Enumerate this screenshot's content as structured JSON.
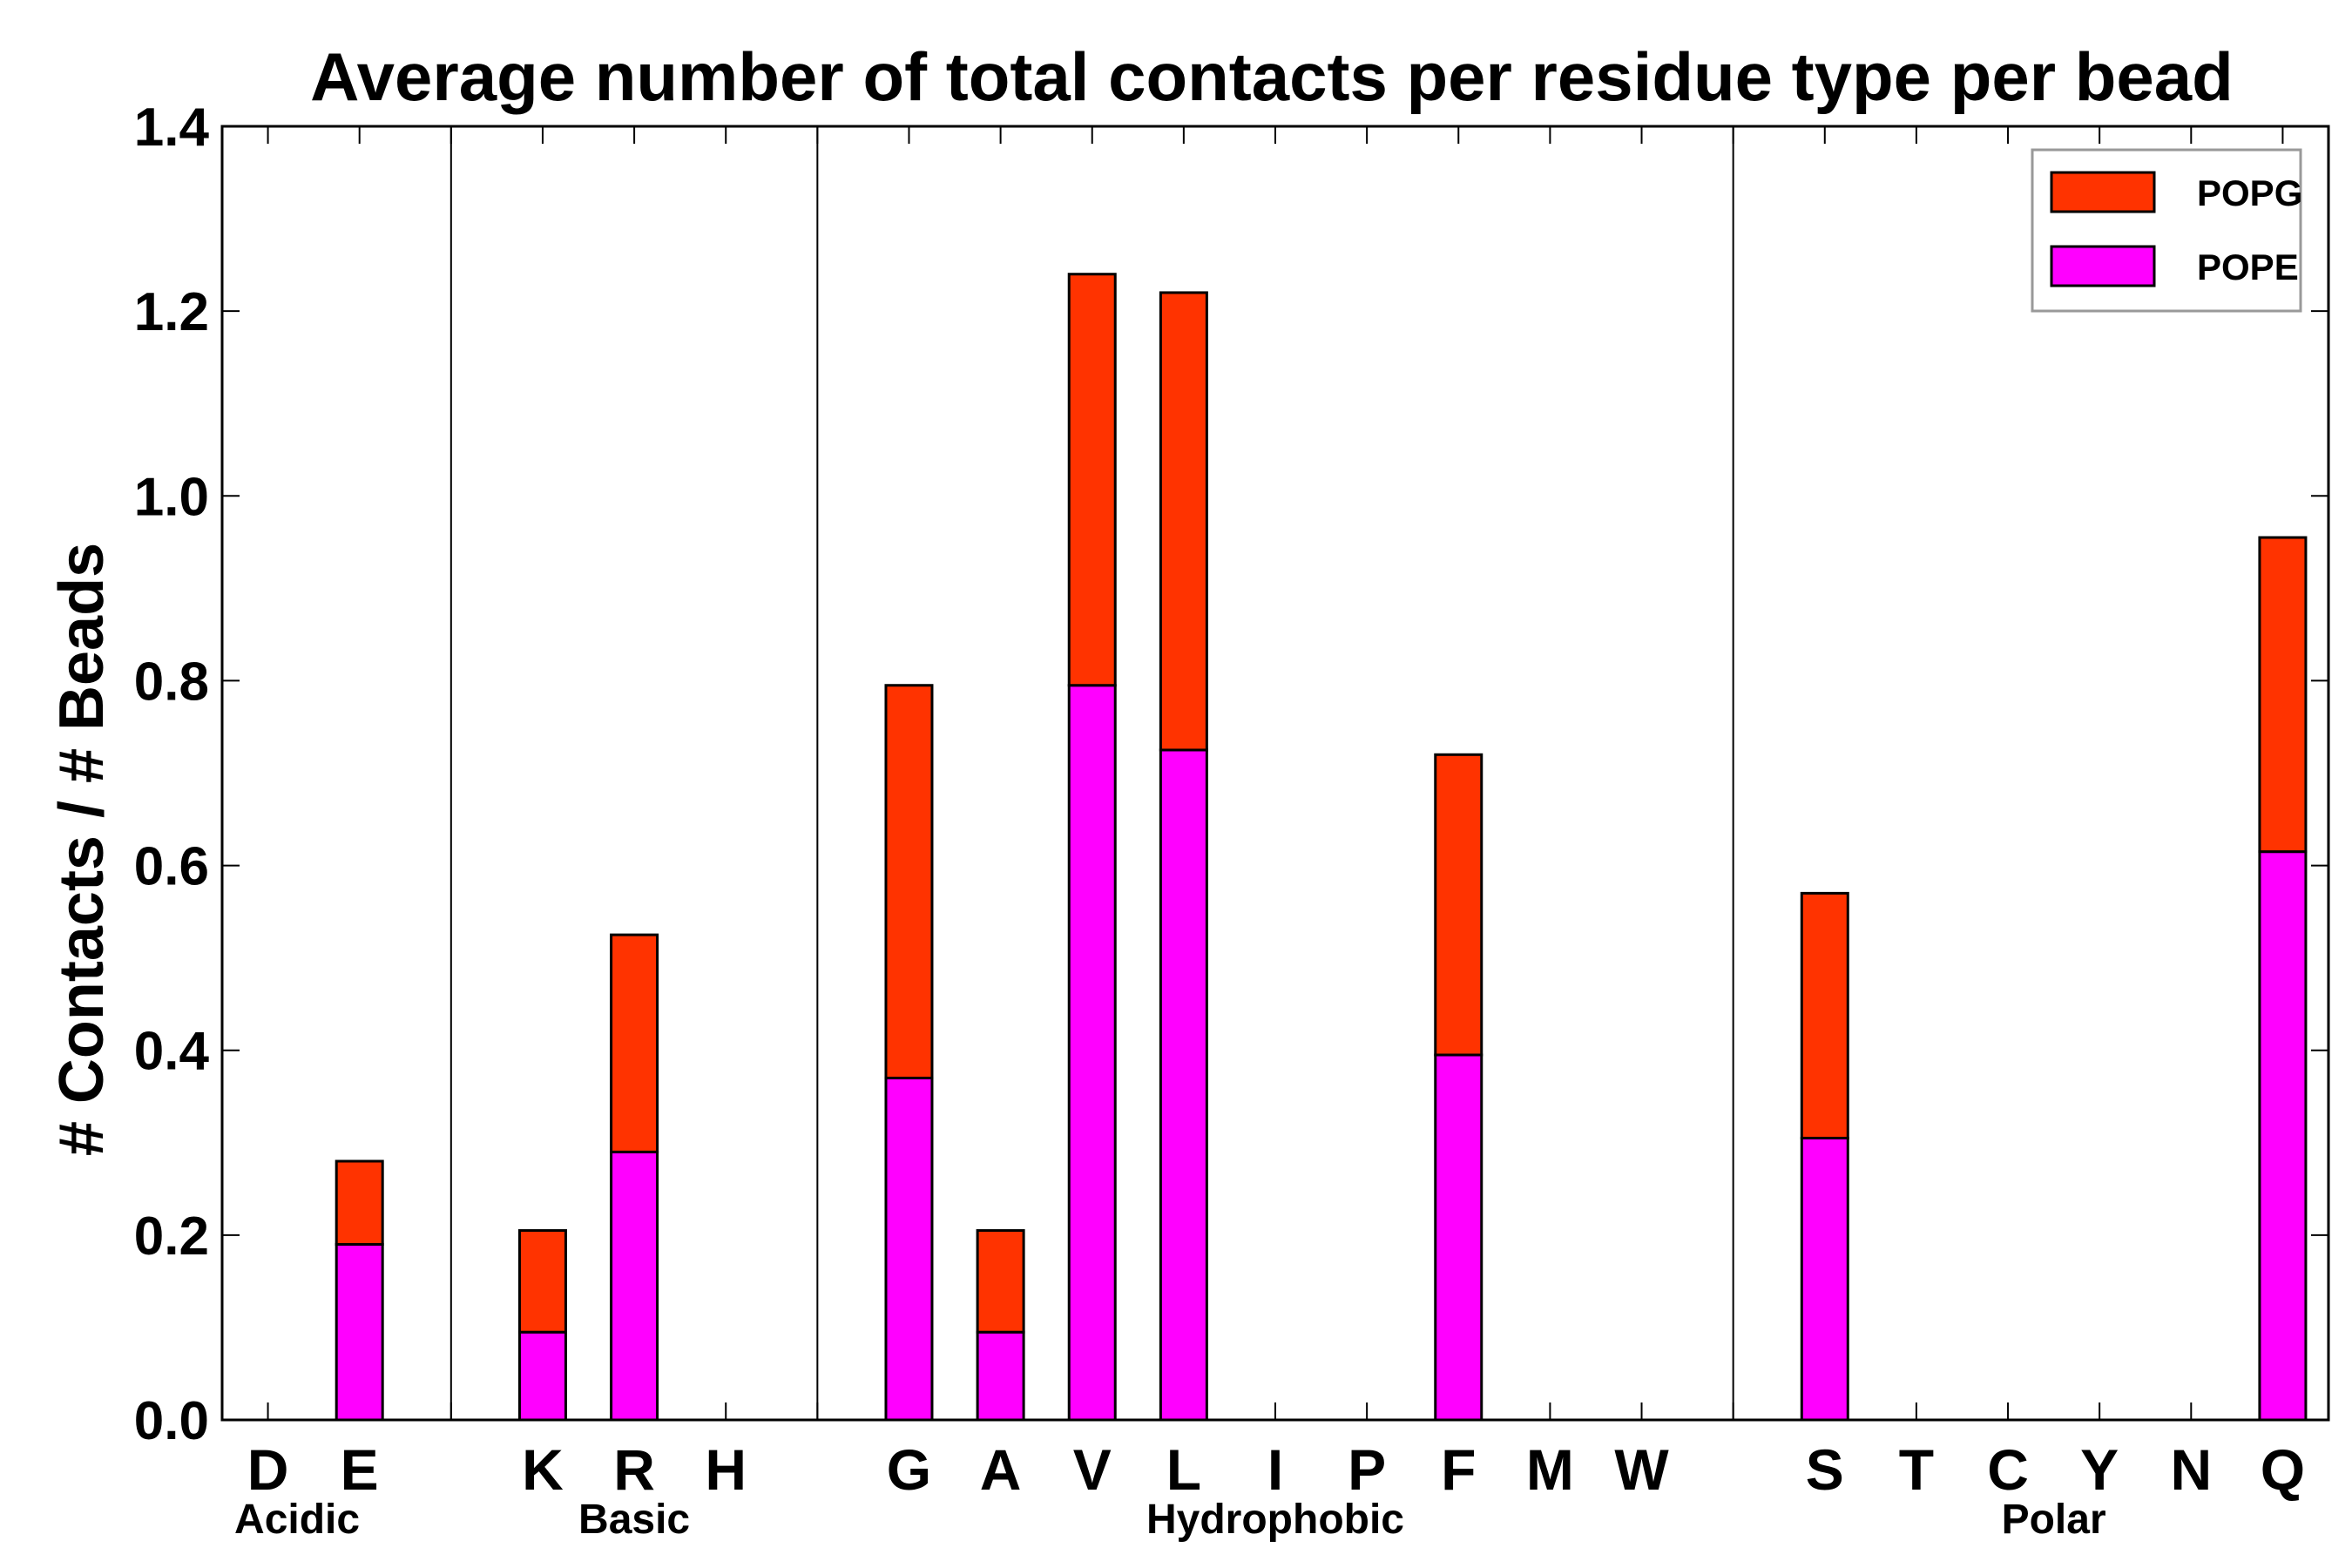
{
  "chart_data": {
    "type": "bar",
    "stacked": true,
    "title": "Average number of total contacts per residue type per bead",
    "xlabel": "",
    "ylabel": "# Contacts / # Beads",
    "ylim": [
      0,
      1.4
    ],
    "yticks": [
      "0.0",
      "0.2",
      "0.4",
      "0.6",
      "0.8",
      "1.0",
      "1.2",
      "1.4"
    ],
    "slots": [
      "D",
      "E",
      "",
      "K",
      "R",
      "H",
      "",
      "G",
      "A",
      "V",
      "L",
      "I",
      "P",
      "F",
      "M",
      "W",
      "",
      "S",
      "T",
      "C",
      "Y",
      "N",
      "Q"
    ],
    "categories": [
      "D",
      "E",
      "K",
      "R",
      "H",
      "G",
      "A",
      "V",
      "L",
      "I",
      "P",
      "F",
      "M",
      "W",
      "S",
      "T",
      "C",
      "Y",
      "N",
      "Q"
    ],
    "series": [
      {
        "name": "POPE",
        "color": "#ff00ff",
        "values": [
          0,
          0.19,
          0.095,
          0.29,
          0,
          0.37,
          0.095,
          0.795,
          0.725,
          0,
          0,
          0.395,
          0,
          0,
          0.305,
          0,
          0,
          0,
          0,
          0.615
        ]
      },
      {
        "name": "POPG",
        "color": "#ff3300",
        "values": [
          0,
          0.09,
          0.11,
          0.235,
          0,
          0.425,
          0.11,
          0.445,
          0.495,
          0,
          0,
          0.325,
          0,
          0,
          0.265,
          0,
          0,
          0,
          0,
          0.34
        ]
      }
    ],
    "groups": [
      {
        "label": "Acidic",
        "members": [
          "D",
          "E"
        ]
      },
      {
        "label": "Basic",
        "members": [
          "K",
          "R",
          "H"
        ]
      },
      {
        "label": "Hydrophobic",
        "members": [
          "G",
          "A",
          "V",
          "L",
          "I",
          "P",
          "F",
          "M",
          "W"
        ]
      },
      {
        "label": "Polar",
        "members": [
          "S",
          "T",
          "C",
          "Y",
          "N",
          "Q"
        ]
      }
    ],
    "legend": {
      "position": "top-right",
      "entries": [
        "POPG",
        "POPE"
      ]
    },
    "grid": false
  }
}
